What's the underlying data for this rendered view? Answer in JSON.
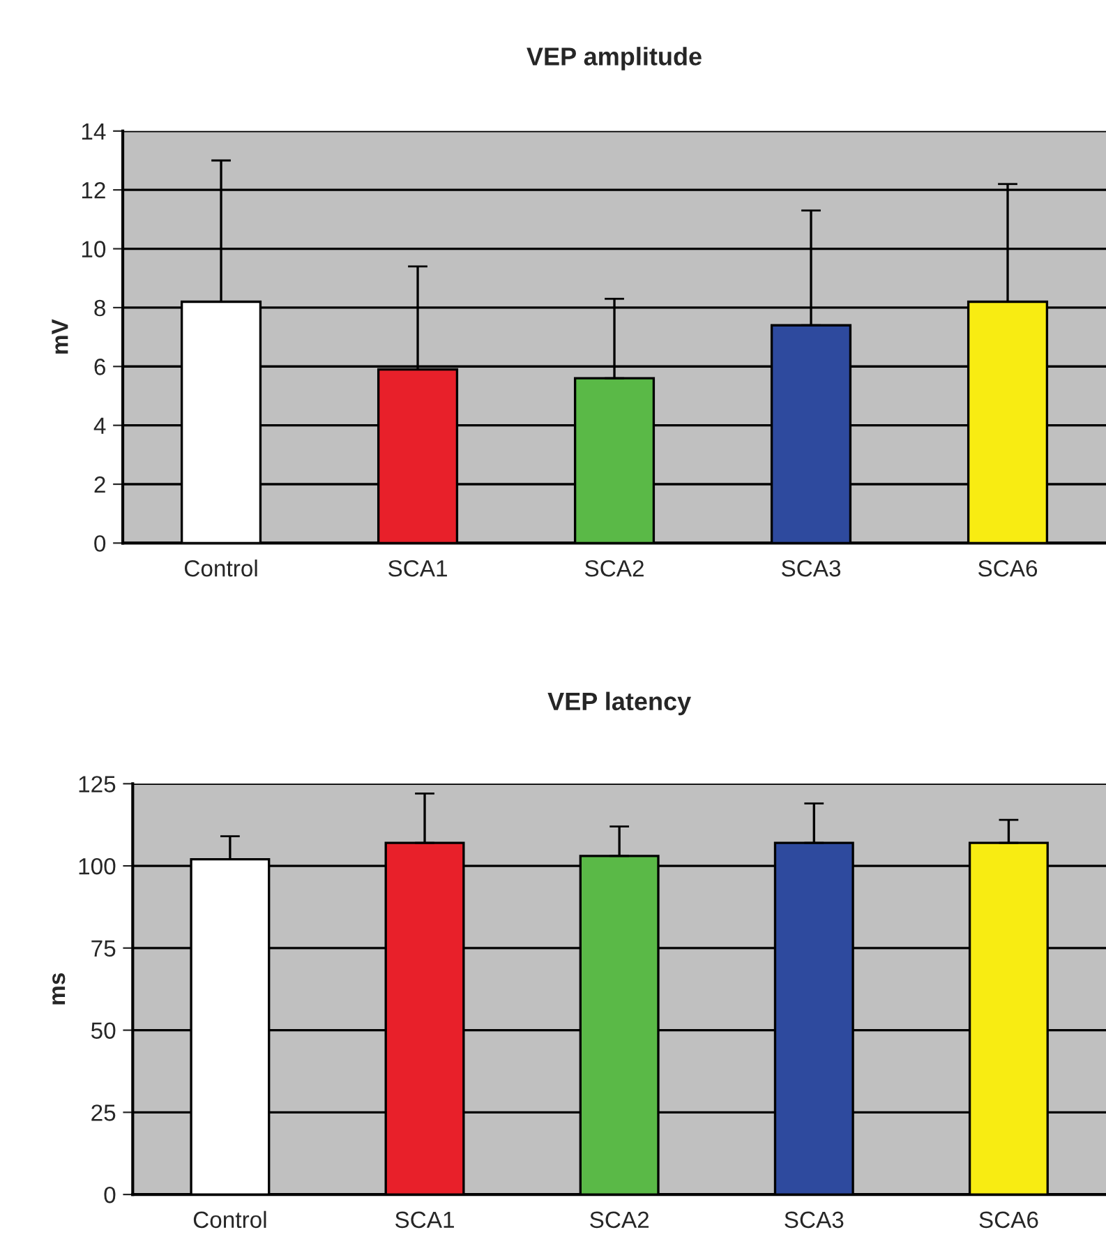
{
  "chart_data": [
    {
      "type": "bar",
      "title": "VEP amplitude",
      "ylabel": "mV",
      "categories": [
        "Control",
        "SCA1",
        "SCA2",
        "SCA3",
        "SCA6"
      ],
      "values": [
        8.2,
        5.9,
        5.6,
        7.4,
        8.2
      ],
      "errors": [
        [
          8.2,
          13.0
        ],
        [
          5.9,
          9.4
        ],
        [
          5.6,
          8.3
        ],
        [
          7.4,
          11.3
        ],
        [
          8.2,
          12.2
        ]
      ],
      "colors": [
        "#ffffff",
        "#e8202a",
        "#5ab947",
        "#2e4a9e",
        "#f8ec12"
      ],
      "ylim": [
        0,
        14
      ],
      "yticks": [
        0,
        2,
        4,
        6,
        8,
        10,
        12,
        14
      ],
      "grid": "y"
    },
    {
      "type": "bar",
      "title": "VEP latency",
      "ylabel": "ms",
      "categories": [
        "Control",
        "SCA1",
        "SCA2",
        "SCA3",
        "SCA6"
      ],
      "values": [
        102,
        107,
        103,
        107,
        107
      ],
      "errors": [
        [
          102,
          109
        ],
        [
          107,
          122
        ],
        [
          103,
          112
        ],
        [
          107,
          119
        ],
        [
          107,
          114
        ]
      ],
      "colors": [
        "#ffffff",
        "#e8202a",
        "#5ab947",
        "#2e4a9e",
        "#f8ec12"
      ],
      "ylim": [
        0,
        125
      ],
      "yticks": [
        0,
        25,
        50,
        75,
        100,
        125
      ],
      "grid": "y"
    }
  ]
}
